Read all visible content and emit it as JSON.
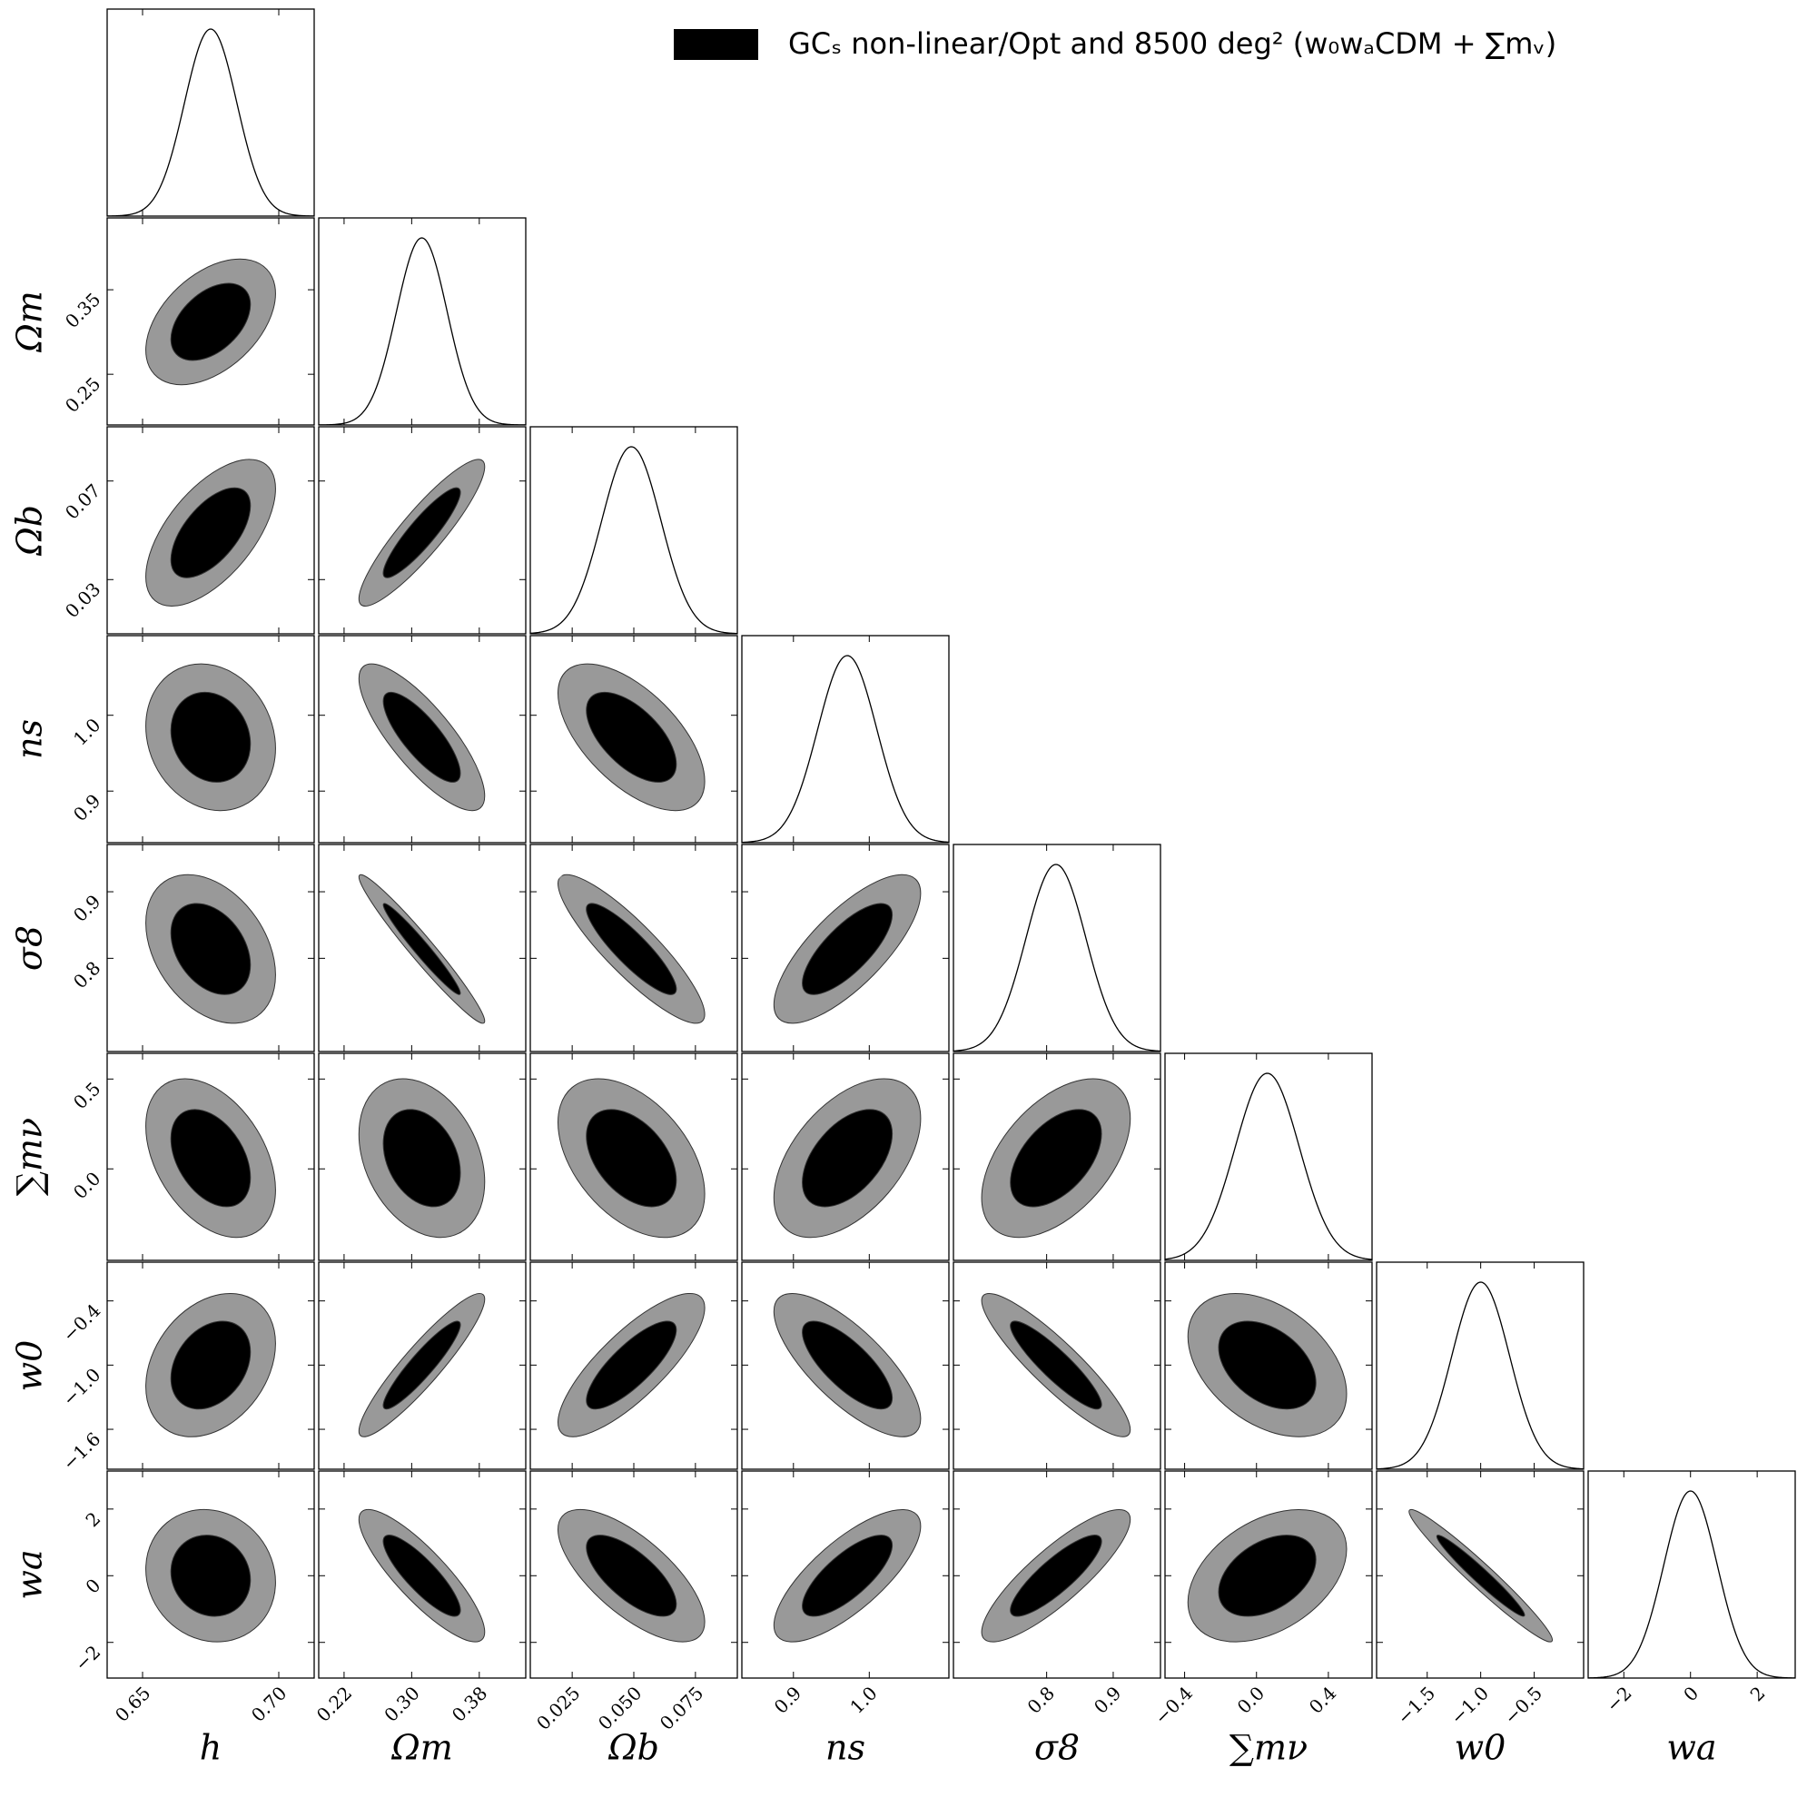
{
  "chart_data": {
    "type": "corner",
    "legend": {
      "label": "GCₛ non-linear/Opt and 8500 deg² (w₀wₐCDM + ∑mᵥ)",
      "color": "#000000"
    },
    "inner_color": "#000000",
    "outer_color": "#999999",
    "parameters": [
      {
        "label": "h",
        "mean": 0.675,
        "sigma": 0.0096,
        "lim": [
          0.637,
          0.713
        ],
        "xticks": [
          0.65,
          {
            "value": 0.7,
            "label": "0.70"
          }
        ]
      },
      {
        "label": "Ωm",
        "mean": 0.312,
        "sigma": 0.03,
        "lim": [
          0.19,
          0.435
        ],
        "xticks": [
          0.22,
          {
            "value": 0.3,
            "label": "0.30"
          },
          0.38
        ],
        "yticks": [
          0.25,
          0.35
        ]
      },
      {
        "label": "Ωb",
        "mean": 0.049,
        "sigma": 0.012,
        "lim": [
          0.008,
          0.092
        ],
        "xticks": [
          0.025,
          {
            "value": 0.05,
            "label": "0.050"
          },
          0.075
        ],
        "yticks": [
          0.03,
          0.07
        ]
      },
      {
        "label": "ns",
        "mean": 0.971,
        "sigma": 0.039,
        "lim": [
          0.832,
          1.105
        ],
        "xticks": [
          0.9,
          {
            "value": 1,
            "label": "1.0"
          }
        ],
        "yticks": [
          0.9,
          {
            "value": 1,
            "label": "1.0"
          }
        ]
      },
      {
        "label": "σ8",
        "mean": 0.814,
        "sigma": 0.045,
        "lim": [
          0.66,
          0.971
        ],
        "xticks": [
          0.8,
          0.9
        ],
        "yticks": [
          0.8,
          0.9
        ]
      },
      {
        "label": "∑mν",
        "mean": 0.06,
        "sigma": 0.178,
        "lim": [
          -0.509,
          0.643
        ],
        "xticks": [
          {
            "value": -0.4,
            "label": "−0.4"
          },
          {
            "value": 0,
            "label": "0.0"
          },
          0.4
        ],
        "yticks": [
          {
            "value": 0,
            "label": "0.0"
          },
          0.5
        ]
      },
      {
        "label": "w0",
        "mean": -1.0,
        "sigma": 0.27,
        "lim": [
          -1.973,
          -0.038
        ],
        "xticks": [
          {
            "value": -1.5,
            "label": "−1.5"
          },
          {
            "value": -1,
            "label": "−1.0"
          },
          {
            "value": -0.5,
            "label": "−0.5"
          }
        ],
        "yticks": [
          {
            "value": -1.6,
            "label": "−1.6"
          },
          {
            "value": -1,
            "label": "−1.0"
          },
          {
            "value": -0.4,
            "label": "−0.4"
          }
        ]
      },
      {
        "label": "wa",
        "mean": 0,
        "sigma": 0.8,
        "lim": [
          -3.07,
          3.14
        ],
        "xticks": [
          {
            "value": -2,
            "label": "−2"
          },
          0,
          2
        ],
        "yticks": [
          {
            "value": -2,
            "label": "−2"
          },
          0,
          2
        ]
      }
    ],
    "correlations": [
      [],
      [
        0.45
      ],
      [
        0.6,
        0.9
      ],
      [
        -0.15,
        -0.8,
        -0.6
      ],
      [
        -0.35,
        -0.97,
        -0.88,
        0.75
      ],
      [
        -0.4,
        -0.3,
        -0.45,
        0.5,
        0.5
      ],
      [
        0.3,
        0.92,
        0.8,
        -0.75,
        -0.9,
        -0.4
      ],
      [
        -0.1,
        -0.85,
        -0.7,
        0.75,
        0.85,
        0.4,
        -0.97
      ]
    ]
  }
}
